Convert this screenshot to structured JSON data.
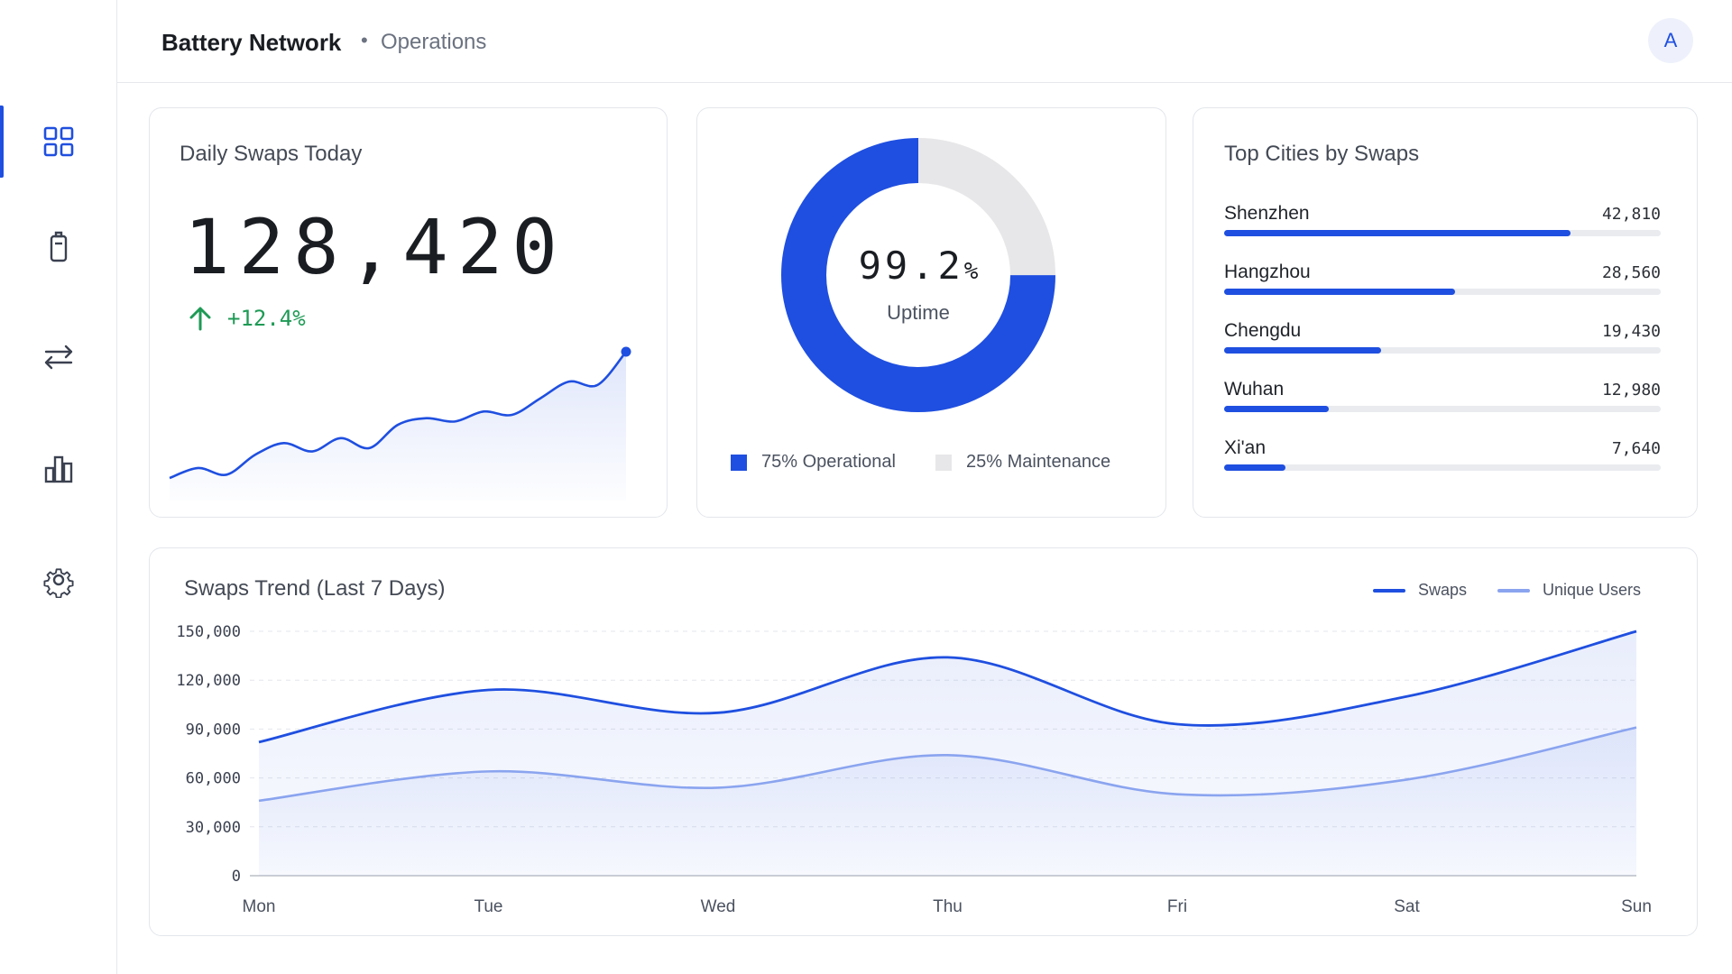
{
  "app": {
    "title": "Battery Network",
    "separator": "•",
    "section": "Operations",
    "avatar_initial": "A"
  },
  "sidebar": {
    "items": [
      {
        "icon": "dashboard-grid-icon",
        "active": true
      },
      {
        "icon": "battery-icon",
        "active": false
      },
      {
        "icon": "swap-arrows-icon",
        "active": false
      },
      {
        "icon": "bar-chart-icon",
        "active": false
      },
      {
        "icon": "gear-icon",
        "active": false
      }
    ]
  },
  "colors": {
    "accent": "#1f4fe0",
    "accent_light": "#8aa4ef",
    "positive": "#1e9a55",
    "muted": "#e9ebef"
  },
  "daily_swaps": {
    "title": "Daily Swaps Today",
    "value": "128,420",
    "delta": "+12.4%",
    "sparkline": [
      12,
      18,
      14,
      26,
      33,
      28,
      36,
      30,
      44,
      48,
      46,
      52,
      50,
      60,
      70,
      68,
      88
    ]
  },
  "uptime": {
    "value": "99.2",
    "unit": "%",
    "label": "Uptime",
    "segments": [
      {
        "label": "75% Operational",
        "value": 75,
        "color": "#1f4fe0"
      },
      {
        "label": "25% Maintenance",
        "value": 25,
        "color": "#e7e7e9"
      }
    ]
  },
  "top_cities": {
    "title": "Top Cities by Swaps",
    "max": 54000,
    "items": [
      {
        "name": "Shenzhen",
        "value": 42810,
        "display": "42,810"
      },
      {
        "name": "Hangzhou",
        "value": 28560,
        "display": "28,560"
      },
      {
        "name": "Chengdu",
        "value": 19430,
        "display": "19,430"
      },
      {
        "name": "Wuhan",
        "value": 12980,
        "display": "12,980"
      },
      {
        "name": "Xi'an",
        "value": 7640,
        "display": "7,640"
      }
    ]
  },
  "chart_data": {
    "type": "area",
    "title": "Swaps Trend (Last 7 Days)",
    "categories": [
      "Mon",
      "Tue",
      "Wed",
      "Thu",
      "Fri",
      "Sat",
      "Sun"
    ],
    "series": [
      {
        "name": "Swaps",
        "values": [
          82000,
          114000,
          100000,
          134000,
          93000,
          110000,
          150000
        ],
        "color": "#1f4fe0"
      },
      {
        "name": "Unique Users",
        "values": [
          46000,
          64000,
          54000,
          74000,
          50000,
          59000,
          91000
        ],
        "color": "#8aa4ef"
      }
    ],
    "yticks": [
      "150,000",
      "120,000",
      "90,000",
      "60,000",
      "30,000",
      "0"
    ],
    "ylim": [
      0,
      150000
    ],
    "grid": true,
    "legend": "top-right"
  }
}
